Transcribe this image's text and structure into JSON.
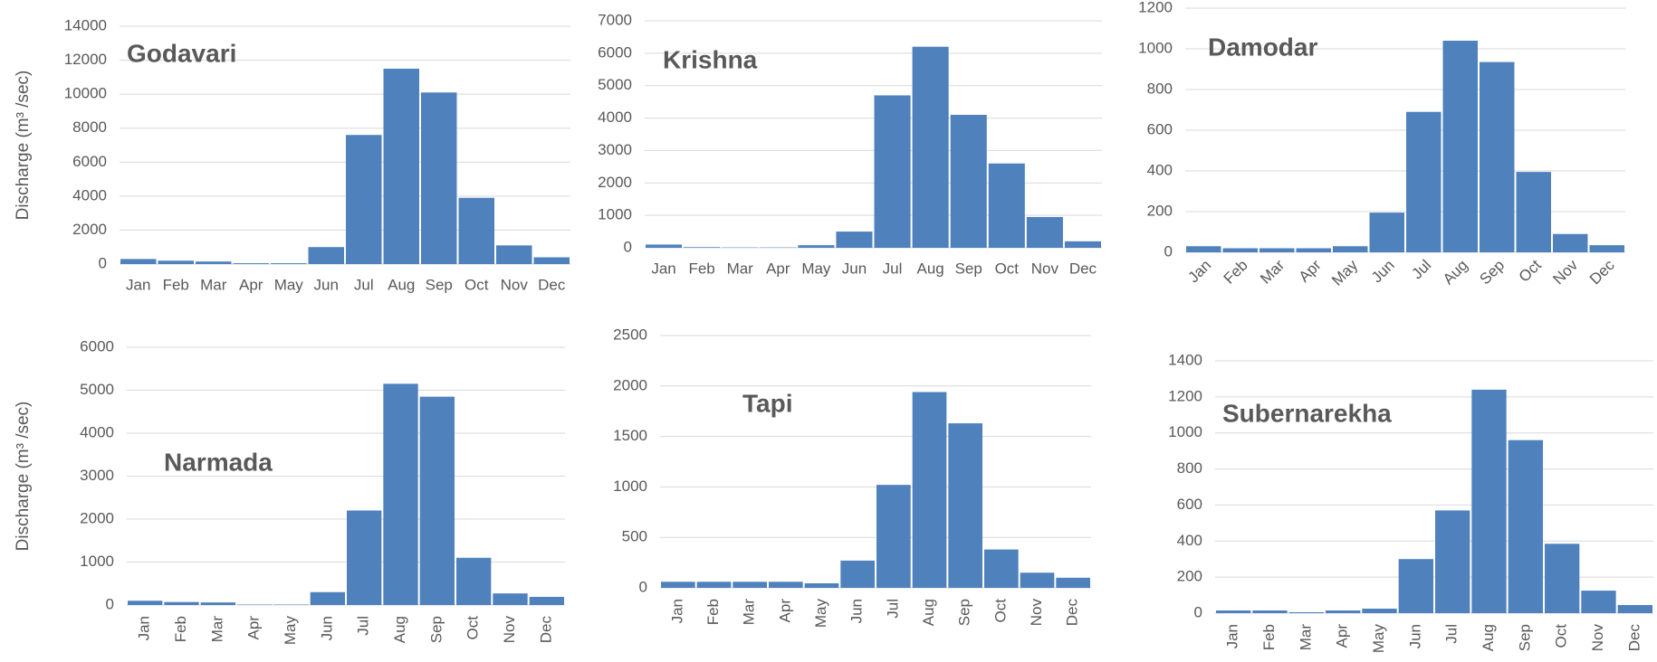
{
  "chart_data": [
    {
      "type": "bar",
      "title": "Godavari",
      "y_label": "Discharge (m³ /sec)",
      "color": "#4f81bd",
      "grid": true,
      "x_label_rotation": 0,
      "categories": [
        "Jan",
        "Feb",
        "Mar",
        "Apr",
        "May",
        "Jun",
        "Jul",
        "Aug",
        "Sep",
        "Oct",
        "Nov",
        "Dec"
      ],
      "values": [
        300,
        200,
        150,
        50,
        50,
        1000,
        7600,
        11500,
        10100,
        3900,
        1100,
        400
      ],
      "ylim": [
        0,
        14000
      ],
      "yticks": [
        0,
        2000,
        4000,
        6000,
        8000,
        10000,
        12000,
        14000
      ]
    },
    {
      "type": "bar",
      "title": "Krishna",
      "color": "#4f81bd",
      "grid": true,
      "x_label_rotation": 0,
      "categories": [
        "Jan",
        "Feb",
        "Mar",
        "Apr",
        "May",
        "Jun",
        "Jul",
        "Aug",
        "Sep",
        "Oct",
        "Nov",
        "Dec"
      ],
      "values": [
        100,
        20,
        10,
        10,
        80,
        500,
        4700,
        6200,
        4100,
        2600,
        950,
        200
      ],
      "ylim": [
        0,
        7000
      ],
      "yticks": [
        0,
        1000,
        2000,
        3000,
        4000,
        5000,
        6000,
        7000
      ]
    },
    {
      "type": "bar",
      "title": "Damodar",
      "color": "#4f81bd",
      "grid": true,
      "x_label_rotation": 45,
      "categories": [
        "Jan",
        "Feb",
        "Mar",
        "Apr",
        "May",
        "Jun",
        "Jul",
        "Aug",
        "Sep",
        "Oct",
        "Nov",
        "Dec"
      ],
      "values": [
        30,
        20,
        20,
        20,
        30,
        195,
        690,
        1040,
        935,
        395,
        90,
        35
      ],
      "ylim": [
        0,
        1200
      ],
      "yticks": [
        0,
        200,
        400,
        600,
        800,
        1000,
        1200
      ]
    },
    {
      "type": "bar",
      "title": "Narmada",
      "y_label": "Discharge (m³ /sec)",
      "color": "#4f81bd",
      "grid": true,
      "x_label_rotation": 90,
      "categories": [
        "Jan",
        "Feb",
        "Mar",
        "Apr",
        "May",
        "Jun",
        "Jul",
        "Aug",
        "Sep",
        "Oct",
        "Nov",
        "Dec"
      ],
      "values": [
        100,
        70,
        60,
        10,
        10,
        300,
        2200,
        5150,
        4850,
        1100,
        270,
        190
      ],
      "ylim": [
        0,
        6000
      ],
      "yticks": [
        0,
        1000,
        2000,
        3000,
        4000,
        5000,
        6000
      ]
    },
    {
      "type": "bar",
      "title": "Tapi",
      "color": "#4f81bd",
      "grid": true,
      "x_label_rotation": 90,
      "categories": [
        "Jan",
        "Feb",
        "Mar",
        "Apr",
        "May",
        "Jun",
        "Jul",
        "Aug",
        "Sep",
        "Oct",
        "Nov",
        "Dec"
      ],
      "values": [
        60,
        60,
        60,
        60,
        45,
        270,
        1020,
        1940,
        1630,
        380,
        150,
        100
      ],
      "ylim": [
        0,
        2500
      ],
      "yticks": [
        0,
        500,
        1000,
        1500,
        2000,
        2500
      ]
    },
    {
      "type": "bar",
      "title": "Subernarekha",
      "color": "#4f81bd",
      "grid": true,
      "x_label_rotation": 90,
      "categories": [
        "Jan",
        "Feb",
        "Mar",
        "Apr",
        "May",
        "Jun",
        "Jul",
        "Aug",
        "Sep",
        "Oct",
        "Nov",
        "Dec"
      ],
      "values": [
        15,
        15,
        5,
        15,
        25,
        300,
        570,
        1240,
        960,
        385,
        125,
        45
      ],
      "ylim": [
        0,
        1400
      ],
      "yticks": [
        0,
        200,
        400,
        600,
        800,
        1000,
        1200,
        1400
      ]
    }
  ]
}
